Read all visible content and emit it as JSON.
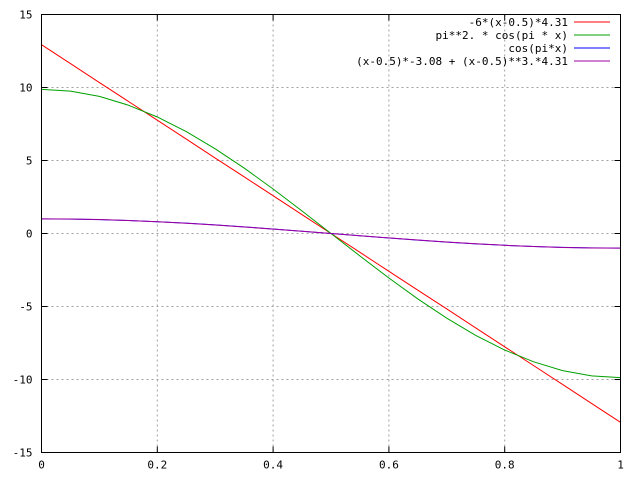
{
  "chart_data": {
    "type": "line",
    "title": "",
    "xlabel": "",
    "ylabel": "",
    "xlim": [
      0,
      1
    ],
    "ylim": [
      -15,
      15
    ],
    "grid": true,
    "legend_position": "top-right",
    "x_ticks": [
      {
        "value": 0,
        "label": "0"
      },
      {
        "value": 0.2,
        "label": "0.2"
      },
      {
        "value": 0.4,
        "label": "0.4"
      },
      {
        "value": 0.6,
        "label": "0.6"
      },
      {
        "value": 0.8,
        "label": "0.8"
      },
      {
        "value": 1,
        "label": "1"
      }
    ],
    "y_ticks": [
      {
        "value": -15,
        "label": "-15"
      },
      {
        "value": -10,
        "label": "-10"
      },
      {
        "value": -5,
        "label": "-5"
      },
      {
        "value": 0,
        "label": "0"
      },
      {
        "value": 5,
        "label": "5"
      },
      {
        "value": 10,
        "label": "10"
      },
      {
        "value": 15,
        "label": "15"
      }
    ],
    "x": [
      0,
      0.05,
      0.1,
      0.15,
      0.2,
      0.25,
      0.3,
      0.35,
      0.4,
      0.45,
      0.5,
      0.55,
      0.6,
      0.65,
      0.7,
      0.75,
      0.8,
      0.85,
      0.9,
      0.95,
      1
    ],
    "series": [
      {
        "name": "-6*(x-0.5)*4.31",
        "color": "#ff0000",
        "values": [
          12.93,
          11.64,
          10.34,
          9.05,
          7.76,
          6.47,
          5.17,
          3.88,
          2.59,
          1.29,
          0,
          -1.29,
          -2.59,
          -3.88,
          -5.17,
          -6.47,
          -7.76,
          -9.05,
          -10.34,
          -11.64,
          -12.93
        ]
      },
      {
        "name": "pi**2. * cos(pi * x)",
        "color": "#00a000",
        "values": [
          9.87,
          9.75,
          9.39,
          8.79,
          7.98,
          6.98,
          5.8,
          4.48,
          3.05,
          1.54,
          0,
          -1.54,
          -3.05,
          -4.48,
          -5.8,
          -6.98,
          -7.98,
          -8.79,
          -9.39,
          -9.75,
          -9.87
        ]
      },
      {
        "name": "cos(pi*x)",
        "color": "#0000ff",
        "values": [
          1,
          0.988,
          0.951,
          0.891,
          0.809,
          0.707,
          0.588,
          0.454,
          0.309,
          0.156,
          0,
          -0.156,
          -0.309,
          -0.454,
          -0.588,
          -0.707,
          -0.809,
          -0.891,
          -0.951,
          -0.988,
          -1
        ]
      },
      {
        "name": "(x-0.5)*-3.08 + (x-0.5)**3.*4.31",
        "color": "#a000a0",
        "values": [
          1.001,
          0.993,
          0.956,
          0.893,
          0.808,
          0.703,
          0.582,
          0.447,
          0.303,
          0.153,
          0,
          -0.153,
          -0.303,
          -0.447,
          -0.582,
          -0.703,
          -0.808,
          -0.893,
          -0.956,
          -0.993,
          -1.001
        ]
      }
    ]
  }
}
